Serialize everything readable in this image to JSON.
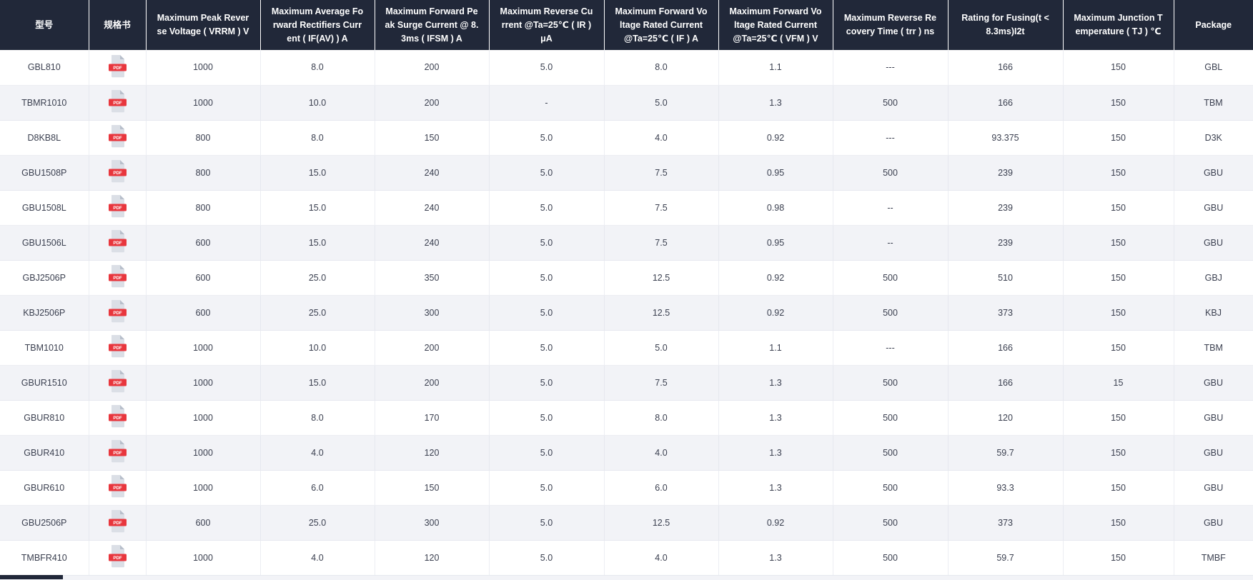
{
  "table": {
    "pdf_icon_label": "PDF",
    "columns": [
      {
        "key": "model",
        "label": "型号"
      },
      {
        "key": "datasheet",
        "label": "规格书"
      },
      {
        "key": "vrrm",
        "label": "Maximum Peak Reverse Voltage ( VRRM ) V"
      },
      {
        "key": "ifav",
        "label": "Maximum Average Forward Rectifiers Current ( IF(AV) ) A"
      },
      {
        "key": "ifsm",
        "label": "Maximum Forward Peak Surge Current @ 8.3ms ( IFSM ) A"
      },
      {
        "key": "ir",
        "label": "Maximum Reverse Current @Ta=25℃ ( IR ) μA"
      },
      {
        "key": "if",
        "label": "Maximum Forward Voltage Rated Current @Ta=25℃ ( IF ) A"
      },
      {
        "key": "vfm",
        "label": "Maximum Forward Voltage Rated Current @Ta=25℃ ( VFM ) V"
      },
      {
        "key": "trr",
        "label": "Maximum Reverse Recovery Time ( trr ) ns"
      },
      {
        "key": "i2t",
        "label": "Rating for Fusing(t < 8.3ms)I2t"
      },
      {
        "key": "tj",
        "label": "Maximum Junction Temperature ( TJ ) ℃"
      },
      {
        "key": "package",
        "label": "Package"
      }
    ],
    "rows": [
      {
        "model": "GBL810",
        "vrrm": "1000",
        "ifav": "8.0",
        "ifsm": "200",
        "ir": "5.0",
        "if": "8.0",
        "vfm": "1.1",
        "trr": "---",
        "i2t": "166",
        "tj": "150",
        "package": "GBL"
      },
      {
        "model": "TBMR1010",
        "vrrm": "1000",
        "ifav": "10.0",
        "ifsm": "200",
        "ir": "-",
        "if": "5.0",
        "vfm": "1.3",
        "trr": "500",
        "i2t": "166",
        "tj": "150",
        "package": "TBM"
      },
      {
        "model": "D8KB8L",
        "vrrm": "800",
        "ifav": "8.0",
        "ifsm": "150",
        "ir": "5.0",
        "if": "4.0",
        "vfm": "0.92",
        "trr": "---",
        "i2t": "93.375",
        "tj": "150",
        "package": "D3K"
      },
      {
        "model": "GBU1508P",
        "vrrm": "800",
        "ifav": "15.0",
        "ifsm": "240",
        "ir": "5.0",
        "if": "7.5",
        "vfm": "0.95",
        "trr": "500",
        "i2t": "239",
        "tj": "150",
        "package": "GBU"
      },
      {
        "model": "GBU1508L",
        "vrrm": "800",
        "ifav": "15.0",
        "ifsm": "240",
        "ir": "5.0",
        "if": "7.5",
        "vfm": "0.98",
        "trr": "--",
        "i2t": "239",
        "tj": "150",
        "package": "GBU"
      },
      {
        "model": "GBU1506L",
        "vrrm": "600",
        "ifav": "15.0",
        "ifsm": "240",
        "ir": "5.0",
        "if": "7.5",
        "vfm": "0.95",
        "trr": "--",
        "i2t": "239",
        "tj": "150",
        "package": "GBU"
      },
      {
        "model": "GBJ2506P",
        "vrrm": "600",
        "ifav": "25.0",
        "ifsm": "350",
        "ir": "5.0",
        "if": "12.5",
        "vfm": "0.92",
        "trr": "500",
        "i2t": "510",
        "tj": "150",
        "package": "GBJ"
      },
      {
        "model": "KBJ2506P",
        "vrrm": "600",
        "ifav": "25.0",
        "ifsm": "300",
        "ir": "5.0",
        "if": "12.5",
        "vfm": "0.92",
        "trr": "500",
        "i2t": "373",
        "tj": "150",
        "package": "KBJ"
      },
      {
        "model": "TBM1010",
        "vrrm": "1000",
        "ifav": "10.0",
        "ifsm": "200",
        "ir": "5.0",
        "if": "5.0",
        "vfm": "1.1",
        "trr": "---",
        "i2t": "166",
        "tj": "150",
        "package": "TBM"
      },
      {
        "model": "GBUR1510",
        "vrrm": "1000",
        "ifav": "15.0",
        "ifsm": "200",
        "ir": "5.0",
        "if": "7.5",
        "vfm": "1.3",
        "trr": "500",
        "i2t": "166",
        "tj": "15",
        "package": "GBU"
      },
      {
        "model": "GBUR810",
        "vrrm": "1000",
        "ifav": "8.0",
        "ifsm": "170",
        "ir": "5.0",
        "if": "8.0",
        "vfm": "1.3",
        "trr": "500",
        "i2t": "120",
        "tj": "150",
        "package": "GBU"
      },
      {
        "model": "GBUR410",
        "vrrm": "1000",
        "ifav": "4.0",
        "ifsm": "120",
        "ir": "5.0",
        "if": "4.0",
        "vfm": "1.3",
        "trr": "500",
        "i2t": "59.7",
        "tj": "150",
        "package": "GBU"
      },
      {
        "model": "GBUR610",
        "vrrm": "1000",
        "ifav": "6.0",
        "ifsm": "150",
        "ir": "5.0",
        "if": "6.0",
        "vfm": "1.3",
        "trr": "500",
        "i2t": "93.3",
        "tj": "150",
        "package": "GBU"
      },
      {
        "model": "GBU2506P",
        "vrrm": "600",
        "ifav": "25.0",
        "ifsm": "300",
        "ir": "5.0",
        "if": "12.5",
        "vfm": "0.92",
        "trr": "500",
        "i2t": "373",
        "tj": "150",
        "package": "GBU"
      },
      {
        "model": "TMBFR410",
        "vrrm": "1000",
        "ifav": "4.0",
        "ifsm": "120",
        "ir": "5.0",
        "if": "4.0",
        "vfm": "1.3",
        "trr": "500",
        "i2t": "59.7",
        "tj": "150",
        "package": "TMBF"
      }
    ]
  },
  "colors": {
    "header_bg": "#212839",
    "row_alt_bg": "#f2f3f7",
    "pdf_red": "#e8363d",
    "cell_text": "#3b4050"
  }
}
